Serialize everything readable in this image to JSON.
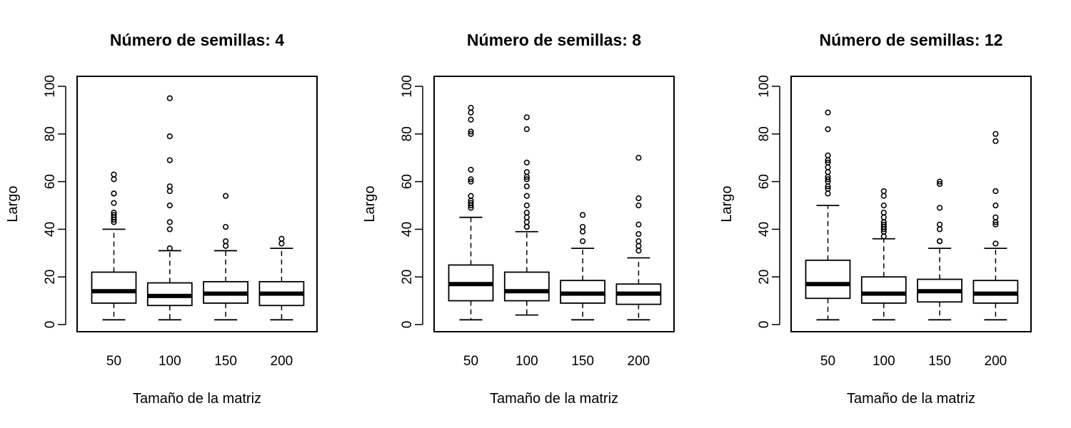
{
  "chart_data": [
    {
      "type": "boxplot",
      "title": "Número de semillas: 4",
      "xlabel": "Tamaño de la matriz",
      "ylabel": "Largo",
      "ylim": [
        0,
        100
      ],
      "yticks": [
        0,
        20,
        40,
        60,
        80,
        100
      ],
      "categories": [
        "50",
        "100",
        "150",
        "200"
      ],
      "boxes": [
        {
          "whisker_low": 2,
          "q1": 9,
          "median": 14,
          "q3": 22,
          "whisker_high": 40,
          "outliers": [
            43,
            44,
            45,
            46,
            47,
            51,
            55,
            55,
            61,
            63
          ]
        },
        {
          "whisker_low": 2,
          "q1": 8,
          "median": 12,
          "q3": 17.5,
          "whisker_high": 31,
          "outliers": [
            32,
            40,
            43,
            50,
            56,
            58,
            69,
            79,
            95
          ]
        },
        {
          "whisker_low": 2,
          "q1": 9,
          "median": 13,
          "q3": 18,
          "whisker_high": 31,
          "outliers": [
            33,
            35,
            41,
            54
          ]
        },
        {
          "whisker_low": 2,
          "q1": 8,
          "median": 13,
          "q3": 18,
          "whisker_high": 32,
          "outliers": [
            34,
            36
          ]
        }
      ]
    },
    {
      "type": "boxplot",
      "title": "Número de semillas: 8",
      "xlabel": "Tamaño de la matriz",
      "ylabel": "Largo",
      "ylim": [
        0,
        100
      ],
      "yticks": [
        0,
        20,
        40,
        60,
        80,
        100
      ],
      "categories": [
        "50",
        "100",
        "150",
        "200"
      ],
      "boxes": [
        {
          "whisker_low": 2,
          "q1": 10,
          "median": 17,
          "q3": 25,
          "whisker_high": 45,
          "outliers": [
            49,
            50,
            51,
            52,
            54,
            60,
            61,
            65,
            80,
            81,
            86,
            89,
            91
          ]
        },
        {
          "whisker_low": 4,
          "q1": 10,
          "median": 14,
          "q3": 22,
          "whisker_high": 39,
          "outliers": [
            41,
            41,
            43,
            45,
            47,
            50,
            54,
            58,
            61,
            62,
            64,
            68,
            82,
            87
          ]
        },
        {
          "whisker_low": 2,
          "q1": 9,
          "median": 13,
          "q3": 18.5,
          "whisker_high": 32,
          "outliers": [
            35,
            39,
            41,
            46
          ]
        },
        {
          "whisker_low": 2,
          "q1": 8.5,
          "median": 13,
          "q3": 17,
          "whisker_high": 28,
          "outliers": [
            31,
            33,
            35,
            38,
            42,
            50,
            53,
            70
          ]
        }
      ]
    },
    {
      "type": "boxplot",
      "title": "Número de semillas: 12",
      "xlabel": "Tamaño de la matriz",
      "ylabel": "Largo",
      "ylim": [
        0,
        100
      ],
      "yticks": [
        0,
        20,
        40,
        60,
        80,
        100
      ],
      "categories": [
        "50",
        "100",
        "150",
        "200"
      ],
      "boxes": [
        {
          "whisker_low": 2,
          "q1": 11,
          "median": 17,
          "q3": 27,
          "whisker_high": 50,
          "outliers": [
            55,
            57,
            58,
            60,
            61,
            62,
            64,
            66,
            68,
            69,
            71,
            82,
            89
          ]
        },
        {
          "whisker_low": 2,
          "q1": 9,
          "median": 13,
          "q3": 20,
          "whisker_high": 36,
          "outliers": [
            37,
            39,
            40,
            41,
            42,
            43,
            45,
            47,
            50,
            54,
            56
          ]
        },
        {
          "whisker_low": 2,
          "q1": 9.5,
          "median": 14,
          "q3": 19,
          "whisker_high": 32,
          "outliers": [
            35,
            35,
            40,
            42,
            49,
            59,
            60
          ]
        },
        {
          "whisker_low": 2,
          "q1": 9,
          "median": 13,
          "q3": 18.5,
          "whisker_high": 32,
          "outliers": [
            34,
            42,
            43,
            45,
            50,
            56,
            77,
            80
          ]
        }
      ]
    }
  ]
}
